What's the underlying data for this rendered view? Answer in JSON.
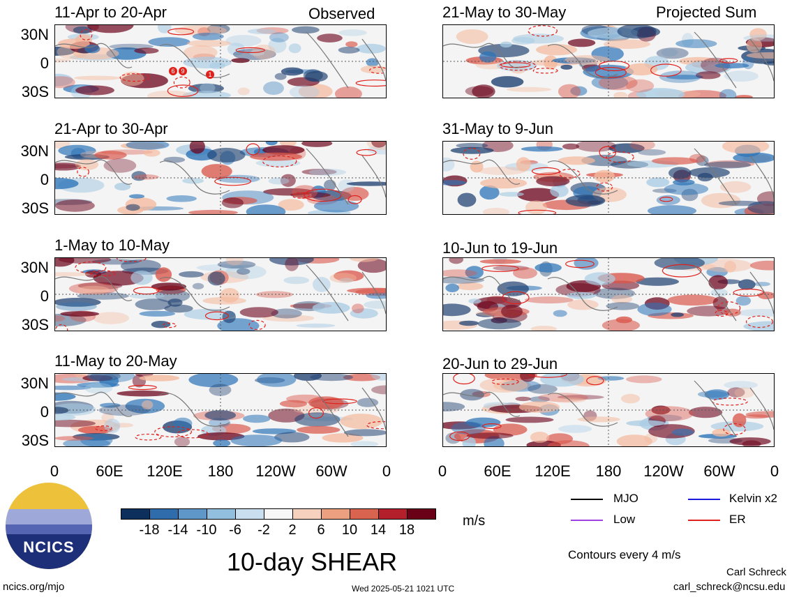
{
  "colors": {
    "neg_dark": "#1d3f70",
    "neg": "#2c74b8",
    "neg_light": "#a9cce4",
    "pos_light": "#f4b99d",
    "pos": "#d9564a",
    "pos_dark": "#6a0018",
    "contour_er": "#e0201b",
    "contour_mjo": "#000000",
    "contour_kelvin": "#1a1adf",
    "contour_low": "#a040e0"
  },
  "panels_left": [
    {
      "title": "11-Apr to 20-Apr",
      "tag": "Observed"
    },
    {
      "title": "21-Apr to 30-Apr",
      "tag": ""
    },
    {
      "title": "1-May to 10-May",
      "tag": ""
    },
    {
      "title": "11-May to 20-May",
      "tag": ""
    }
  ],
  "panels_right": [
    {
      "title": "21-May to 30-May",
      "tag": "Projected Sum"
    },
    {
      "title": "31-May to 9-Jun",
      "tag": ""
    },
    {
      "title": "10-Jun to 19-Jun",
      "tag": ""
    },
    {
      "title": "20-Jun to 29-Jun",
      "tag": ""
    }
  ],
  "y_ticks": [
    "30N",
    "0",
    "30S"
  ],
  "x_ticks": [
    "0",
    "60E",
    "120E",
    "180",
    "120W",
    "60W",
    "0"
  ],
  "colorbar": {
    "labels": [
      "-18",
      "-14",
      "-10",
      "-6",
      "-2",
      "2",
      "6",
      "10",
      "14",
      "18"
    ],
    "colors": [
      "#0d2f5c",
      "#2f6cab",
      "#5f97c9",
      "#93bfdf",
      "#c9dff0",
      "#f7f7f7",
      "#f6d1bd",
      "#eda07f",
      "#d8634f",
      "#b3202c",
      "#6a0018"
    ],
    "unit": "m/s"
  },
  "legend": {
    "items": [
      {
        "label": "MJO",
        "color": "#000000"
      },
      {
        "label": "Kelvin x2",
        "color": "#1a1adf"
      },
      {
        "label": "Low",
        "color": "#a040e0"
      },
      {
        "label": "ER",
        "color": "#e0201b"
      }
    ],
    "contour_note": "Contours every 4 m/s"
  },
  "logo_text": "NCICS",
  "main_title": "10-day SHEAR",
  "footer": {
    "url": "ncics.org/mjo",
    "timestamp": "Wed 2025-05-21 1021 UTC",
    "author": "Carl Schreck",
    "email": "carl_schreck@ncsu.edu"
  },
  "tc_markers": [
    "6",
    "9",
    "1"
  ]
}
